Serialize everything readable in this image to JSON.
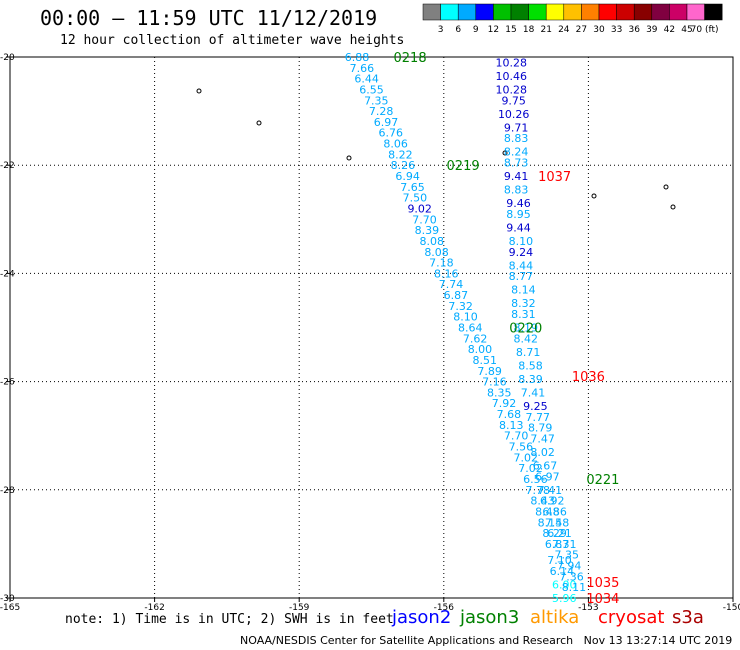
{
  "header": {
    "title": "00:00 – 11:59 UTC 11/12/2019",
    "subtitle": "12 hour collection of altimeter wave heights"
  },
  "colorbar": {
    "labels": [
      "3",
      "6",
      "9",
      "12",
      "15",
      "18",
      "21",
      "24",
      "27",
      "30",
      "33",
      "36",
      "39",
      "42",
      "45",
      "70 (ft)"
    ],
    "colors": [
      "#808080",
      "#00ffff",
      "#00aaff",
      "#0000ff",
      "#00c000",
      "#008000",
      "#00e000",
      "#ffff00",
      "#ffc000",
      "#ff8000",
      "#ff0000",
      "#cc0000",
      "#880000",
      "#800040",
      "#cc0066",
      "#ff66cc",
      "#000000"
    ]
  },
  "footer": {
    "note": "note: 1) Time is in UTC; 2) SWH is in feet",
    "credit": "NOAA/NESDIS Center for Satellite Applications and Research   Nov 13 13:27:14 UTC 2019",
    "missions": [
      {
        "name": "jason2",
        "color": "#0000ff"
      },
      {
        "name": "jason3",
        "color": "#008000"
      },
      {
        "name": "altika",
        "color": "#ff9900"
      },
      {
        "name": "cryosat",
        "color": "#ff0000"
      },
      {
        "name": "s3a",
        "color": "#aa0000"
      }
    ]
  },
  "chart_data": {
    "type": "scatter",
    "title": "00:00 – 11:59 UTC 11/12/2019",
    "xlim": [
      -165,
      -150
    ],
    "ylim": [
      -30,
      -20
    ],
    "x_ticks": [
      "-165",
      "-162",
      "-159",
      "-156",
      "-153",
      "-150"
    ],
    "y_ticks": [
      "-20",
      "-22",
      "-24",
      "-26",
      "-28",
      "-30"
    ],
    "grid": true,
    "time_labels": [
      {
        "text": "0218",
        "lon": -156.7,
        "lat": -20.0,
        "color": "#008000"
      },
      {
        "text": "0219",
        "lon": -155.6,
        "lat": -22.0,
        "color": "#008000"
      },
      {
        "text": "0220",
        "lon": -154.3,
        "lat": -25.0,
        "color": "#008000"
      },
      {
        "text": "0221",
        "lon": -152.7,
        "lat": -27.8,
        "color": "#008000"
      },
      {
        "text": "1037",
        "lon": -153.7,
        "lat": -22.2,
        "color": "#ff0000"
      },
      {
        "text": "1036",
        "lon": -153.0,
        "lat": -25.9,
        "color": "#ff0000"
      },
      {
        "text": "1035",
        "lon": -152.7,
        "lat": -29.7,
        "color": "#ff0000"
      },
      {
        "text": "1034",
        "lon": -152.7,
        "lat": -30.0,
        "color": "#ff0000"
      }
    ],
    "series": [
      {
        "name": "jason3",
        "points": [
          {
            "v": "6.88",
            "lon": -157.8,
            "lat": -20.0,
            "c": "#00aaff"
          },
          {
            "v": "7.66",
            "lon": -157.7,
            "lat": -20.2,
            "c": "#00aaff"
          },
          {
            "v": "6.44",
            "lon": -157.6,
            "lat": -20.4,
            "c": "#00aaff"
          },
          {
            "v": "6.55",
            "lon": -157.5,
            "lat": -20.6,
            "c": "#00aaff"
          },
          {
            "v": "7.35",
            "lon": -157.4,
            "lat": -20.8,
            "c": "#00aaff"
          },
          {
            "v": "7.28",
            "lon": -157.3,
            "lat": -21.0,
            "c": "#00aaff"
          },
          {
            "v": "6.97",
            "lon": -157.2,
            "lat": -21.2,
            "c": "#00aaff"
          },
          {
            "v": "6.76",
            "lon": -157.1,
            "lat": -21.4,
            "c": "#00aaff"
          },
          {
            "v": "8.06",
            "lon": -157.0,
            "lat": -21.6,
            "c": "#00aaff"
          },
          {
            "v": "8.22",
            "lon": -156.9,
            "lat": -21.8,
            "c": "#00aaff"
          },
          {
            "v": "8.26",
            "lon": -156.85,
            "lat": -22.0,
            "c": "#00aaff"
          },
          {
            "v": "6.94",
            "lon": -156.75,
            "lat": -22.2,
            "c": "#00aaff"
          },
          {
            "v": "7.65",
            "lon": -156.65,
            "lat": -22.4,
            "c": "#00aaff"
          },
          {
            "v": "7.50",
            "lon": -156.6,
            "lat": -22.6,
            "c": "#00aaff"
          },
          {
            "v": "9.02",
            "lon": -156.5,
            "lat": -22.8,
            "c": "#0000cc"
          },
          {
            "v": "7.70",
            "lon": -156.4,
            "lat": -23.0,
            "c": "#00aaff"
          },
          {
            "v": "8.39",
            "lon": -156.35,
            "lat": -23.2,
            "c": "#00aaff"
          },
          {
            "v": "8.08",
            "lon": -156.25,
            "lat": -23.4,
            "c": "#00aaff"
          },
          {
            "v": "8.08",
            "lon": -156.15,
            "lat": -23.6,
            "c": "#00aaff"
          },
          {
            "v": "7.18",
            "lon": -156.05,
            "lat": -23.8,
            "c": "#00aaff"
          },
          {
            "v": "8.16",
            "lon": -155.95,
            "lat": -24.0,
            "c": "#00aaff"
          },
          {
            "v": "7.74",
            "lon": -155.85,
            "lat": -24.2,
            "c": "#00aaff"
          },
          {
            "v": "6.87",
            "lon": -155.75,
            "lat": -24.4,
            "c": "#00aaff"
          },
          {
            "v": "7.32",
            "lon": -155.65,
            "lat": -24.6,
            "c": "#00aaff"
          },
          {
            "v": "8.10",
            "lon": -155.55,
            "lat": -24.8,
            "c": "#00aaff"
          },
          {
            "v": "8.64",
            "lon": -155.45,
            "lat": -25.0,
            "c": "#00aaff"
          },
          {
            "v": "7.62",
            "lon": -155.35,
            "lat": -25.2,
            "c": "#00aaff"
          },
          {
            "v": "8.00",
            "lon": -155.25,
            "lat": -25.4,
            "c": "#00aaff"
          },
          {
            "v": "8.51",
            "lon": -155.15,
            "lat": -25.6,
            "c": "#00aaff"
          },
          {
            "v": "7.89",
            "lon": -155.05,
            "lat": -25.8,
            "c": "#00aaff"
          },
          {
            "v": "7.16",
            "lon": -154.95,
            "lat": -26.0,
            "c": "#00aaff"
          },
          {
            "v": "8.35",
            "lon": -154.85,
            "lat": -26.2,
            "c": "#00aaff"
          },
          {
            "v": "7.92",
            "lon": -154.75,
            "lat": -26.4,
            "c": "#00aaff"
          },
          {
            "v": "7.68",
            "lon": -154.65,
            "lat": -26.6,
            "c": "#00aaff"
          },
          {
            "v": "8.13",
            "lon": -154.6,
            "lat": -26.8,
            "c": "#00aaff"
          },
          {
            "v": "7.70",
            "lon": -154.5,
            "lat": -27.0,
            "c": "#00aaff"
          },
          {
            "v": "7.56",
            "lon": -154.4,
            "lat": -27.2,
            "c": "#00aaff"
          },
          {
            "v": "7.02",
            "lon": -154.3,
            "lat": -27.4,
            "c": "#00aaff"
          },
          {
            "v": "7.02",
            "lon": -154.2,
            "lat": -27.6,
            "c": "#00aaff"
          },
          {
            "v": "6.56",
            "lon": -154.1,
            "lat": -27.8,
            "c": "#00aaff"
          },
          {
            "v": "7.78",
            "lon": -154.05,
            "lat": -28.0,
            "c": "#00aaff"
          },
          {
            "v": "8.43",
            "lon": -153.95,
            "lat": -28.2,
            "c": "#00aaff"
          },
          {
            "v": "8.48",
            "lon": -153.85,
            "lat": -28.4,
            "c": "#00aaff"
          },
          {
            "v": "8.15",
            "lon": -153.8,
            "lat": -28.6,
            "c": "#00aaff"
          },
          {
            "v": "8.29",
            "lon": -153.7,
            "lat": -28.8,
            "c": "#00aaff"
          },
          {
            "v": "6.87",
            "lon": -153.65,
            "lat": -29.0,
            "c": "#00aaff"
          },
          {
            "v": "7.10",
            "lon": -153.6,
            "lat": -29.3,
            "c": "#00aaff"
          },
          {
            "v": "6.14",
            "lon": -153.55,
            "lat": -29.5,
            "c": "#00aaff"
          },
          {
            "v": "6.00",
            "lon": -153.5,
            "lat": -29.75,
            "c": "#00ffff"
          },
          {
            "v": "5.96",
            "lon": -153.5,
            "lat": -30.0,
            "c": "#00ffff"
          }
        ]
      },
      {
        "name": "cryosat",
        "points": [
          {
            "v": "10.28",
            "lon": -154.6,
            "lat": -20.1,
            "c": "#0000cc"
          },
          {
            "v": "10.46",
            "lon": -154.6,
            "lat": -20.35,
            "c": "#0000cc"
          },
          {
            "v": "10.28",
            "lon": -154.6,
            "lat": -20.6,
            "c": "#0000cc"
          },
          {
            "v": "9.75",
            "lon": -154.55,
            "lat": -20.8,
            "c": "#0000cc"
          },
          {
            "v": "10.26",
            "lon": -154.55,
            "lat": -21.05,
            "c": "#0000cc"
          },
          {
            "v": "9.71",
            "lon": -154.5,
            "lat": -21.3,
            "c": "#0000cc"
          },
          {
            "v": "8.83",
            "lon": -154.5,
            "lat": -21.5,
            "c": "#00aaff"
          },
          {
            "v": "8.24",
            "lon": -154.5,
            "lat": -21.75,
            "c": "#00aaff"
          },
          {
            "v": "8.73",
            "lon": -154.5,
            "lat": -21.95,
            "c": "#00aaff"
          },
          {
            "v": "9.41",
            "lon": -154.5,
            "lat": -22.2,
            "c": "#0000cc"
          },
          {
            "v": "8.83",
            "lon": -154.5,
            "lat": -22.45,
            "c": "#00aaff"
          },
          {
            "v": "9.46",
            "lon": -154.45,
            "lat": -22.7,
            "c": "#0000cc"
          },
          {
            "v": "8.95",
            "lon": -154.45,
            "lat": -22.9,
            "c": "#00aaff"
          },
          {
            "v": "9.44",
            "lon": -154.45,
            "lat": -23.15,
            "c": "#0000cc"
          },
          {
            "v": "8.10",
            "lon": -154.4,
            "lat": -23.4,
            "c": "#00aaff"
          },
          {
            "v": "9.24",
            "lon": -154.4,
            "lat": -23.6,
            "c": "#0000cc"
          },
          {
            "v": "8.44",
            "lon": -154.4,
            "lat": -23.85,
            "c": "#00aaff"
          },
          {
            "v": "8.77",
            "lon": -154.4,
            "lat": -24.05,
            "c": "#00aaff"
          },
          {
            "v": "8.14",
            "lon": -154.35,
            "lat": -24.3,
            "c": "#00aaff"
          },
          {
            "v": "8.32",
            "lon": -154.35,
            "lat": -24.55,
            "c": "#00aaff"
          },
          {
            "v": "8.31",
            "lon": -154.35,
            "lat": -24.75,
            "c": "#00aaff"
          },
          {
            "v": "8.19",
            "lon": -154.3,
            "lat": -25.0,
            "c": "#00aaff"
          },
          {
            "v": "8.42",
            "lon": -154.3,
            "lat": -25.2,
            "c": "#00aaff"
          },
          {
            "v": "8.71",
            "lon": -154.25,
            "lat": -25.45,
            "c": "#00aaff"
          },
          {
            "v": "8.58",
            "lon": -154.2,
            "lat": -25.7,
            "c": "#00aaff"
          },
          {
            "v": "8.39",
            "lon": -154.2,
            "lat": -25.95,
            "c": "#00aaff"
          },
          {
            "v": "7.41",
            "lon": -154.15,
            "lat": -26.2,
            "c": "#00aaff"
          },
          {
            "v": "9.25",
            "lon": -154.1,
            "lat": -26.45,
            "c": "#0000cc"
          },
          {
            "v": "7.77",
            "lon": -154.05,
            "lat": -26.65,
            "c": "#00aaff"
          },
          {
            "v": "8.79",
            "lon": -154.0,
            "lat": -26.85,
            "c": "#00aaff"
          },
          {
            "v": "7.47",
            "lon": -153.95,
            "lat": -27.05,
            "c": "#00aaff"
          },
          {
            "v": "8.02",
            "lon": -153.95,
            "lat": -27.3,
            "c": "#00aaff"
          },
          {
            "v": "6.67",
            "lon": -153.9,
            "lat": -27.55,
            "c": "#00aaff"
          },
          {
            "v": "6.97",
            "lon": -153.85,
            "lat": -27.75,
            "c": "#00aaff"
          },
          {
            "v": "7.41",
            "lon": -153.8,
            "lat": -28.0,
            "c": "#00aaff"
          },
          {
            "v": "6.92",
            "lon": -153.75,
            "lat": -28.2,
            "c": "#00aaff"
          },
          {
            "v": "6.86",
            "lon": -153.7,
            "lat": -28.4,
            "c": "#00aaff"
          },
          {
            "v": "7.48",
            "lon": -153.65,
            "lat": -28.6,
            "c": "#00aaff"
          },
          {
            "v": "6.21",
            "lon": -153.6,
            "lat": -28.8,
            "c": "#00aaff"
          },
          {
            "v": "7.31",
            "lon": -153.5,
            "lat": -29.0,
            "c": "#00aaff"
          },
          {
            "v": "7.35",
            "lon": -153.45,
            "lat": -29.2,
            "c": "#00aaff"
          },
          {
            "v": "7.94",
            "lon": -153.4,
            "lat": -29.4,
            "c": "#00aaff"
          },
          {
            "v": "7.36",
            "lon": -153.35,
            "lat": -29.6,
            "c": "#00aaff"
          },
          {
            "v": "8.11",
            "lon": -153.3,
            "lat": -29.8,
            "c": "#00aaff"
          }
        ]
      }
    ]
  }
}
